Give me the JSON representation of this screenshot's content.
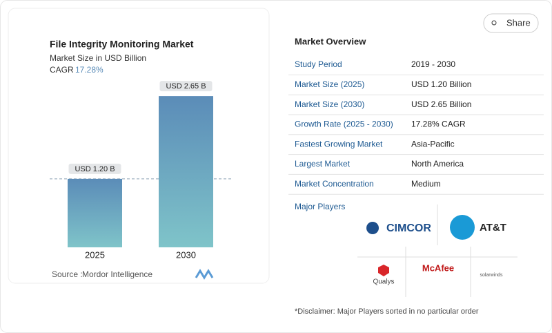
{
  "chart_data": {
    "type": "bar",
    "title": "File Integrity Monitoring Market",
    "subtitle": "Market Size in USD Billion",
    "cagr_label": "CAGR",
    "cagr": "17.28%",
    "categories": [
      "2025",
      "2030"
    ],
    "values": [
      1.2,
      2.65
    ],
    "value_labels": [
      "USD 1.20 B",
      "USD 2.65 B"
    ],
    "source_label": "Source :",
    "source": "Mordor Intelligence"
  },
  "share": "Share",
  "overview": {
    "title": "Market Overview",
    "rows": [
      [
        "Study Period",
        "2019 - 2030"
      ],
      [
        "Market Size (2025)",
        "USD 1.20 Billion"
      ],
      [
        "Market Size (2030)",
        "USD 2.65 Billion"
      ],
      [
        "Growth Rate (2025 - 2030)",
        "17.28% CAGR"
      ],
      [
        "Fastest Growing Market",
        "Asia-Pacific"
      ],
      [
        "Largest Market",
        "North America"
      ],
      [
        "Market Concentration",
        "Medium"
      ]
    ]
  },
  "major_players": {
    "title": "Major Players",
    "logos": [
      "CIMCOR",
      "AT&T",
      "Qualys",
      "McAfee",
      "solarwinds"
    ]
  },
  "disclaimer": "*Disclaimer: Major Players sorted in no particular order"
}
